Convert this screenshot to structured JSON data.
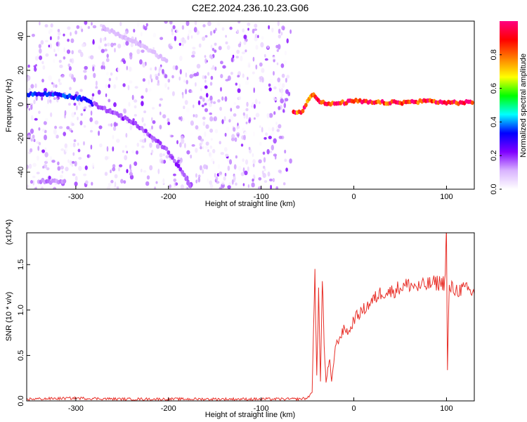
{
  "title": "C2E2.2024.236.10.23.G06",
  "chart_data": [
    {
      "type": "heatmap",
      "xlabel": "Height of straight line (km)",
      "ylabel": "Frequency (Hz)",
      "xlim": [
        -353,
        130
      ],
      "ylim": [
        -50,
        49
      ],
      "x_ticks": [
        -300,
        -200,
        -100,
        0,
        100
      ],
      "y_ticks": [
        -40,
        -20,
        0,
        20,
        40
      ],
      "colorbar": {
        "label": "Normalized spectral amplitude",
        "range": [
          0,
          1
        ],
        "ticks": [
          "0.0",
          "0.2",
          "0.4",
          "0.6",
          "0.8"
        ],
        "colors": [
          "#ffffff",
          "#d9b3ff",
          "#8000ff",
          "#0000ff",
          "#00ffff",
          "#00ff00",
          "#ffff00",
          "#ff8000",
          "#ff0000",
          "#ff0080"
        ]
      },
      "noise_region_x": [
        -353,
        -68
      ],
      "traces": [
        {
          "points": [
            [
              -353,
              6
            ],
            [
              -320,
              6
            ],
            [
              -300,
              4
            ],
            [
              -290,
              3
            ],
            [
              -280,
              0
            ]
          ],
          "amplitude": 0.35
        },
        {
          "points": [
            [
              -280,
              0
            ],
            [
              -260,
              -5
            ],
            [
              -240,
              -10
            ],
            [
              -220,
              -18
            ],
            [
              -200,
              -28
            ],
            [
              -185,
              -40
            ],
            [
              -175,
              -50
            ]
          ],
          "amplitude": 0.2
        },
        {
          "points": [
            [
              -340,
              -45
            ],
            [
              -310,
              -46
            ]
          ],
          "amplitude": 0.15
        },
        {
          "points": [
            [
              -270,
              45
            ],
            [
              -230,
              35
            ],
            [
              -200,
              25
            ]
          ],
          "amplitude": 0.1
        },
        {
          "points": [
            [
              -65,
              -5
            ],
            [
              -55,
              -4
            ],
            [
              -50,
              2
            ],
            [
              -45,
              6
            ],
            [
              -40,
              4
            ],
            [
              -35,
              1
            ],
            [
              -25,
              0
            ],
            [
              -10,
              1
            ],
            [
              0,
              2
            ],
            [
              20,
              1
            ],
            [
              50,
              1
            ],
            [
              80,
              2
            ],
            [
              100,
              1
            ],
            [
              130,
              1
            ]
          ],
          "amplitude": 0.95
        }
      ]
    },
    {
      "type": "line",
      "xlabel": "Height of straight line (km)",
      "ylabel": "SNR (10 * v/v)",
      "y_multiplier": "(x10^4)",
      "xlim": [
        -353,
        130
      ],
      "ylim": [
        0,
        1.85
      ],
      "x_ticks": [
        -300,
        -200,
        -100,
        0,
        100
      ],
      "y_ticks": [
        0.0,
        0.5,
        1.0,
        1.5
      ],
      "y_tick_labels": [
        "0.0",
        "0.5",
        "1.0",
        "1.5"
      ],
      "color": "#e8312a",
      "series": [
        {
          "x": [
            -353,
            -300,
            -250,
            -200,
            -150,
            -100,
            -60,
            -50,
            -45,
            -42,
            -40,
            -38,
            -36,
            -34,
            -32,
            -30,
            -28,
            -26,
            -24,
            -20,
            -15,
            -10,
            -5,
            0,
            5,
            10,
            15,
            20,
            25,
            30,
            40,
            50,
            60,
            70,
            80,
            90,
            95,
            98,
            100,
            101,
            103,
            110,
            120,
            130
          ],
          "y": [
            0.02,
            0.03,
            0.02,
            0.02,
            0.02,
            0.02,
            0.02,
            0.03,
            0.1,
            1.4,
            0.3,
            1.2,
            0.2,
            1.4,
            0.6,
            0.2,
            0.35,
            0.45,
            0.2,
            0.6,
            0.7,
            0.8,
            0.75,
            0.9,
            0.95,
            1.0,
            1.05,
            1.1,
            1.15,
            1.2,
            1.2,
            1.25,
            1.28,
            1.25,
            1.28,
            1.3,
            1.3,
            1.3,
            1.85,
            0.33,
            1.25,
            1.22,
            1.23,
            1.18
          ]
        }
      ]
    }
  ]
}
